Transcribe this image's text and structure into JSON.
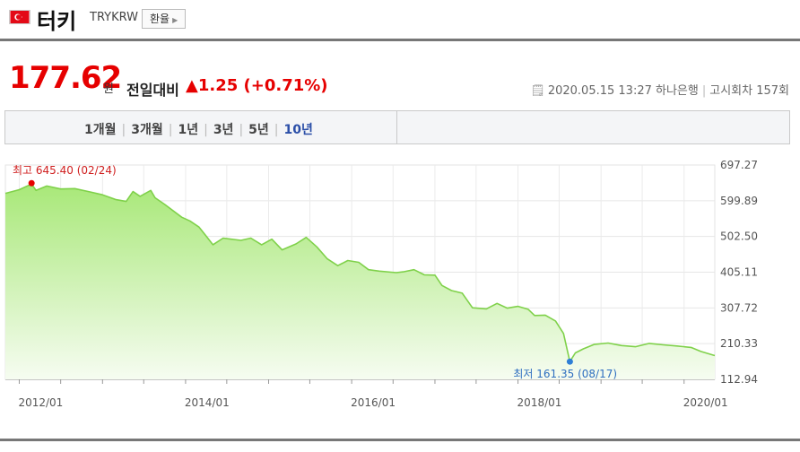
{
  "header": {
    "country": "터키",
    "code": "TRYKRW",
    "fx_button": "환율"
  },
  "quote": {
    "price": "177.62",
    "unit": "원",
    "compare_label": "전일대비",
    "change": "▲1.25 (+0.71%)",
    "timestamp": "2020.05.15 13:27",
    "bank": "하나은행",
    "notice": "고시회차 157회"
  },
  "tabs": [
    {
      "label": "1개월",
      "active": false
    },
    {
      "label": "3개월",
      "active": false
    },
    {
      "label": "1년",
      "active": false
    },
    {
      "label": "3년",
      "active": false
    },
    {
      "label": "5년",
      "active": false
    },
    {
      "label": "10년",
      "active": true
    }
  ],
  "colors": {
    "accent_red": "#e60000",
    "active_tab": "#2b4fa8",
    "line": "#7fd14a",
    "fill_top": "#a8e878",
    "low_marker": "#2f7fd6"
  },
  "chart_data": {
    "type": "area",
    "x_ticks": [
      "2012/01",
      "2014/01",
      "2016/01",
      "2018/01",
      "2020/01"
    ],
    "y_ticks": [
      "697.27",
      "599.89",
      "502.50",
      "405.11",
      "307.72",
      "210.33",
      "112.94"
    ],
    "ylim": [
      112.94,
      697.27
    ],
    "xlim": [
      "2011-11-01",
      "2020-05-15"
    ],
    "grid": true,
    "max_label": "최고 645.40 (02/24)",
    "min_label": "최저 161.35 (08/17)",
    "max_point": {
      "x": "2012-02-24",
      "y": 645.4
    },
    "min_point": {
      "x": "2018-08-17",
      "y": 161.35
    },
    "series": [
      {
        "values": [
          [
            "2011-11-01",
            620
          ],
          [
            "2012-01-01",
            630
          ],
          [
            "2012-02-24",
            645.4
          ],
          [
            "2012-03-15",
            628
          ],
          [
            "2012-05-01",
            640
          ],
          [
            "2012-07-01",
            632
          ],
          [
            "2012-09-01",
            633
          ],
          [
            "2012-11-01",
            625
          ],
          [
            "2013-01-01",
            616
          ],
          [
            "2013-03-01",
            603
          ],
          [
            "2013-04-15",
            598
          ],
          [
            "2013-05-15",
            625
          ],
          [
            "2013-06-15",
            612
          ],
          [
            "2013-08-01",
            628
          ],
          [
            "2013-08-20",
            608
          ],
          [
            "2013-10-01",
            590
          ],
          [
            "2013-12-15",
            555
          ],
          [
            "2014-01-20",
            545
          ],
          [
            "2014-03-01",
            528
          ],
          [
            "2014-04-01",
            504
          ],
          [
            "2014-05-01",
            480
          ],
          [
            "2014-06-15",
            498
          ],
          [
            "2014-09-01",
            492
          ],
          [
            "2014-10-15",
            498
          ],
          [
            "2014-12-01",
            480
          ],
          [
            "2015-01-15",
            495
          ],
          [
            "2015-03-01",
            466
          ],
          [
            "2015-05-01",
            482
          ],
          [
            "2015-06-15",
            500
          ],
          [
            "2015-08-01",
            474
          ],
          [
            "2015-09-15",
            442
          ],
          [
            "2015-11-01",
            423
          ],
          [
            "2015-12-15",
            437
          ],
          [
            "2016-02-01",
            432
          ],
          [
            "2016-03-15",
            412
          ],
          [
            "2016-05-01",
            408
          ],
          [
            "2016-07-15",
            404
          ],
          [
            "2016-08-15",
            406
          ],
          [
            "2016-10-01",
            412
          ],
          [
            "2016-11-15",
            398
          ],
          [
            "2017-01-01",
            397
          ],
          [
            "2017-02-01",
            369
          ],
          [
            "2017-03-15",
            355
          ],
          [
            "2017-05-01",
            348
          ],
          [
            "2017-06-15",
            308
          ],
          [
            "2017-08-15",
            305
          ],
          [
            "2017-10-01",
            320
          ],
          [
            "2017-11-15",
            307
          ],
          [
            "2018-01-01",
            312
          ],
          [
            "2018-02-15",
            304
          ],
          [
            "2018-03-15",
            287
          ],
          [
            "2018-05-01",
            288
          ],
          [
            "2018-06-15",
            272
          ],
          [
            "2018-07-20",
            238
          ],
          [
            "2018-08-17",
            161.35
          ],
          [
            "2018-09-10",
            185
          ],
          [
            "2018-10-15",
            196
          ],
          [
            "2018-12-01",
            208
          ],
          [
            "2019-02-01",
            212
          ],
          [
            "2019-04-01",
            205
          ],
          [
            "2019-06-01",
            202
          ],
          [
            "2019-08-01",
            211
          ],
          [
            "2019-10-01",
            207
          ],
          [
            "2019-12-01",
            204
          ],
          [
            "2020-02-01",
            200
          ],
          [
            "2020-03-15",
            189
          ],
          [
            "2020-05-15",
            177.62
          ]
        ]
      }
    ]
  }
}
